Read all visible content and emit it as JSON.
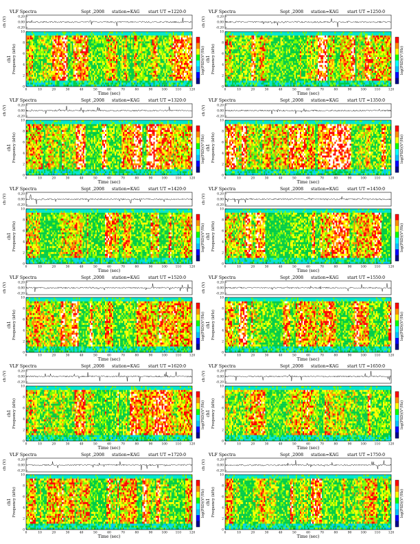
{
  "figure": {
    "panels": [
      {
        "title": "VLF Spectra",
        "date": "Sept ,2008",
        "station": "station=KAG",
        "start": "start UT =1220:0",
        "seed": 11,
        "density": 0.62
      },
      {
        "title": "VLF Spectra",
        "date": "Sept ,2008",
        "station": "station=KAG",
        "start": "start UT =1250:0",
        "seed": 23,
        "density": 0.6
      },
      {
        "title": "VLF Spectra",
        "date": "Sept ,2008",
        "station": "station=KAG",
        "start": "start UT =1320:0",
        "seed": 37,
        "density": 0.66
      },
      {
        "title": "VLF Spectra",
        "date": "Sept ,2008",
        "station": "station=KAG",
        "start": "start UT =1350:0",
        "seed": 41,
        "density": 0.64
      },
      {
        "title": "VLF Spectra",
        "date": "Sept ,2008",
        "station": "station=KAG",
        "start": "start UT =1420:0",
        "seed": 53,
        "density": 0.58
      },
      {
        "title": "VLF Spectra",
        "date": "Sept ,2008",
        "station": "station=KAG",
        "start": "start UT =1450:0",
        "seed": 67,
        "density": 0.57
      },
      {
        "title": "VLF Spectra",
        "date": "Sept ,2008",
        "station": "station=KAG",
        "start": "start UT =1520:0",
        "seed": 71,
        "density": 0.59
      },
      {
        "title": "VLF Spectra",
        "date": "Sept ,2008",
        "station": "station=KAG",
        "start": "start UT =1550:0",
        "seed": 83,
        "density": 0.61
      },
      {
        "title": "VLF Spectra",
        "date": "Sept ,2008",
        "station": "station=KAG",
        "start": "start UT =1620:0",
        "seed": 97,
        "density": 0.56
      },
      {
        "title": "VLF Spectra",
        "date": "Sept ,2008",
        "station": "station=KAG",
        "start": "start UT =1650:0",
        "seed": 101,
        "density": 0.5
      },
      {
        "title": "VLF Spectra",
        "date": "Sept ,2008",
        "station": "station=KAG",
        "start": "start UT =1720:0",
        "seed": 113,
        "density": 0.6
      },
      {
        "title": "VLF Spectra",
        "date": "Sept ,2008",
        "station": "station=KAG",
        "start": "start UT =1750:0",
        "seed": 127,
        "density": 0.52
      }
    ],
    "labels": {
      "xlabel": "Time  (sec)",
      "ylabel_wave": "ch (V)",
      "ylabel_spec_line1": "ch1",
      "ylabel_spec_line2": "Frequency  (kHz)",
      "colorbar_label": "log(PSD)(V²/Hz)"
    },
    "colors": {
      "spectrogram_levels": [
        "#ffffff",
        "#ff0000",
        "#ff8c00",
        "#ffff00",
        "#7cfc00",
        "#00cc44",
        "#00e5cc",
        "#00bfff",
        "#0000ff"
      ],
      "colorbar": [
        "#ff0000",
        "#ff8c00",
        "#ffff00",
        "#00ff00",
        "#00ffff",
        "#00bfff",
        "#0000ff",
        "#00008b"
      ],
      "waveform": "#000000"
    }
  },
  "chart_data": {
    "type": "heatmap",
    "x_axis": {
      "label": "Time  (sec)",
      "range": [
        0,
        120
      ],
      "ticks": [
        0,
        10,
        20,
        30,
        40,
        50,
        60,
        70,
        80,
        90,
        100,
        110,
        120
      ]
    },
    "y_axis_spectrogram": {
      "label": "Frequency  (kHz)",
      "range": [
        0,
        10
      ],
      "ticks": [
        0,
        2,
        4,
        6,
        8,
        10
      ]
    },
    "y_axis_waveform": {
      "label": "ch (V)",
      "ticks": [
        -0.2,
        0.0,
        0.2
      ],
      "tick_labels": [
        "-0.20",
        "0.00",
        "0.20"
      ]
    },
    "colorbar_label": "log(PSD)(V²/Hz)",
    "panel_starts_UT": [
      "1220:0",
      "1250:0",
      "1320:0",
      "1350:0",
      "1420:0",
      "1450:0",
      "1520:0",
      "1550:0",
      "1620:0",
      "1650:0",
      "1720:0",
      "1750:0"
    ]
  }
}
